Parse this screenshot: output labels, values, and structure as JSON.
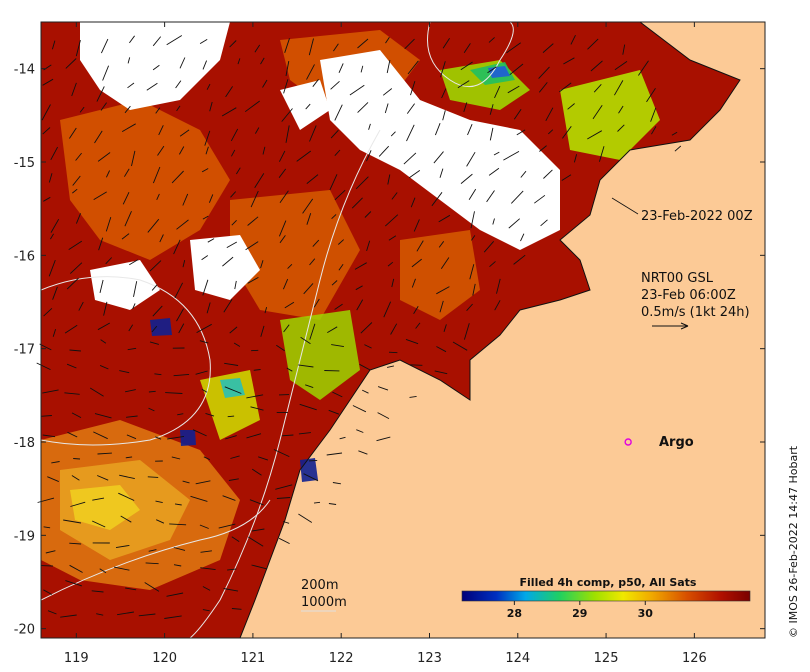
{
  "map": {
    "lon_range": [
      118.6,
      126.8
    ],
    "lat_range": [
      -20.1,
      -13.5
    ],
    "lon_ticks": [
      119,
      120,
      121,
      122,
      123,
      124,
      125,
      126
    ],
    "lat_ticks": [
      -14,
      -15,
      -16,
      -17,
      -18,
      -19,
      -20
    ],
    "land_color": "#fcca96",
    "sst_palette": [
      "#00007a",
      "#0044c8",
      "#00a8e8",
      "#20d060",
      "#9ee000",
      "#f0e800",
      "#f0a800",
      "#d85000",
      "#b01000",
      "#7a0000"
    ]
  },
  "annotations": {
    "composite_time": "23-Feb-2022 00Z",
    "current_source": "NRT00 GSL",
    "current_time": "23-Feb 06:00Z",
    "current_scale": "0.5m/s (1kt 24h)",
    "isobath_200": "200m",
    "isobath_1000": "1000m"
  },
  "argo": {
    "label": "Argo",
    "marker_color": "#e000e0",
    "lon": 125.25,
    "lat": -18.0
  },
  "colorbar": {
    "title": "Filled 4h comp, p50, All Sats",
    "range": [
      27.2,
      31.6
    ],
    "ticks": [
      "28",
      "29",
      "30"
    ],
    "tick_values": [
      28,
      29,
      30
    ]
  },
  "credit": "© IMOS 26-Feb-2022 14:47 Hobart"
}
